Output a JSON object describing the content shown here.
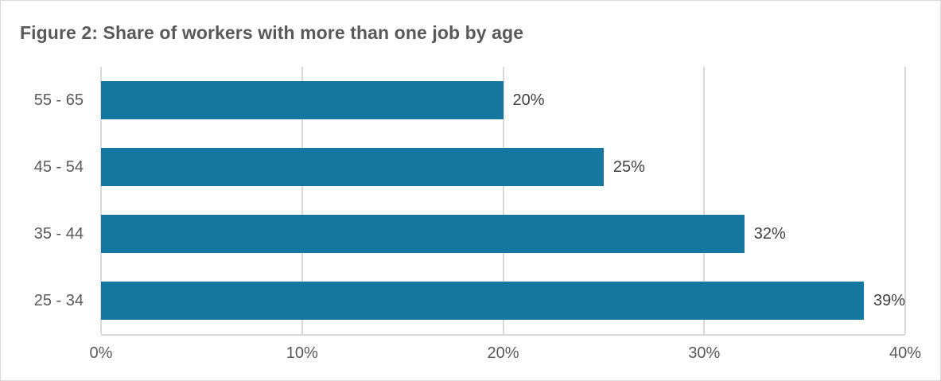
{
  "chart_data": {
    "type": "bar",
    "orientation": "horizontal",
    "title": "Figure 2: Share of workers with more than one job by age",
    "categories": [
      "55 - 65",
      "45 - 54",
      "35 - 44",
      "25 - 34"
    ],
    "values": [
      20,
      25,
      32,
      39
    ],
    "data_labels": [
      "20%",
      "25%",
      "32%",
      "39%"
    ],
    "x_ticks": [
      "0%",
      "10%",
      "20%",
      "30%",
      "40%"
    ],
    "xlim": [
      0,
      40
    ],
    "xlabel": "",
    "ylabel": "",
    "grid": "vertical gridlines only",
    "legend_position": "none",
    "colors": {
      "bar": "#16789F",
      "gridline": "#D9D9D9",
      "axis_text": "#595959",
      "title_text": "#595959",
      "data_label_text": "#404040",
      "background": "#FFFFFF",
      "border": "#D9D9D9"
    }
  }
}
